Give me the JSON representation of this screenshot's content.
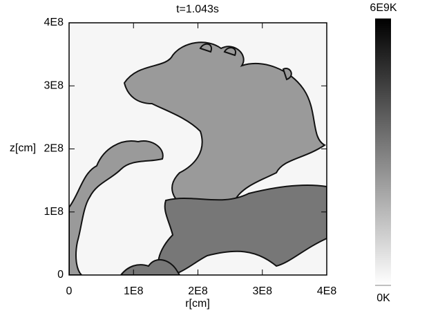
{
  "chart_data": {
    "type": "heatmap",
    "title": "t=1.043s",
    "xlabel": "r[cm]",
    "ylabel": "z[cm]",
    "xlim": [
      0,
      400000000
    ],
    "ylim": [
      0,
      400000000
    ],
    "xticks": [
      0,
      {
        "value": 100000000,
        "label": "1E8"
      },
      {
        "value": 200000000,
        "label": "2E8"
      },
      {
        "value": 300000000,
        "label": "3E8"
      },
      {
        "value": 400000000,
        "label": "4E8"
      }
    ],
    "yticks": [
      0,
      {
        "value": 100000000,
        "label": "1E8"
      },
      {
        "value": 200000000,
        "label": "2E8"
      },
      {
        "value": 300000000,
        "label": "3E8"
      },
      {
        "value": 400000000,
        "label": "4E8"
      }
    ],
    "colorbar": {
      "lim": [
        0,
        6000000000
      ],
      "ticks": [
        {
          "value": 0,
          "label": "0K"
        },
        {
          "value": 6000000000,
          "label": "6E9K"
        }
      ],
      "colors": [
        "#ffffff",
        "#000000"
      ]
    }
  }
}
